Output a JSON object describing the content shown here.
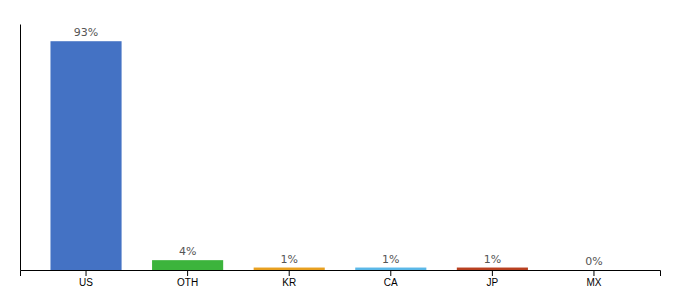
{
  "chart_data": {
    "type": "bar",
    "categories": [
      "US",
      "OTH",
      "KR",
      "CA",
      "JP",
      "MX"
    ],
    "values": [
      93,
      4,
      1,
      1,
      1,
      0
    ],
    "value_labels": [
      "93%",
      "4%",
      "1%",
      "1%",
      "1%",
      "0%"
    ],
    "colors": [
      "#4472C4",
      "#3CB43C",
      "#E8A020",
      "#5BB8E8",
      "#B84020",
      "#C0C0C0"
    ],
    "ylim": [
      0,
      100
    ],
    "grid": false,
    "data_labels": true,
    "tick_labels": "x"
  }
}
